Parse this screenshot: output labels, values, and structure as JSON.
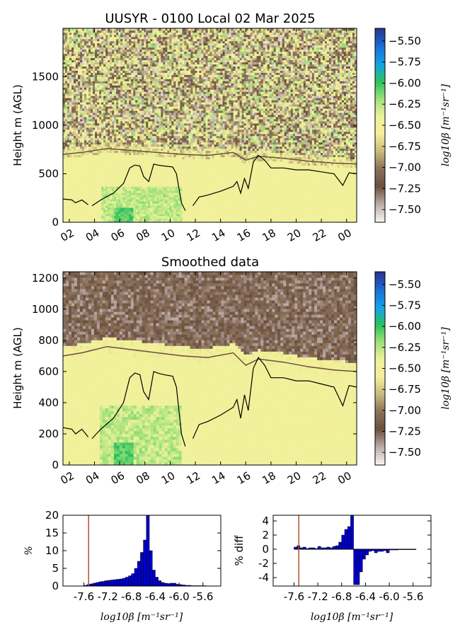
{
  "title": "UUSYR - 0100 Local 02 Mar 2025",
  "chart_data": [
    {
      "type": "heatmap",
      "subtitle": "",
      "ylabel": "Height m (AGL)",
      "xlabel": "",
      "x_tick_labels": [
        "02",
        "04",
        "06",
        "08",
        "10",
        "12",
        "14",
        "16",
        "18",
        "20",
        "22",
        "00"
      ],
      "x_range_hours": [
        1.5,
        24.8
      ],
      "y_ticks": [
        0,
        500,
        1000,
        1500
      ],
      "ylim": [
        0,
        2000
      ],
      "colorbar_label": "log10β [m⁻¹sr⁻¹]",
      "colorbar_ticks": [
        -5.5,
        -5.75,
        -6.0,
        -6.25,
        -6.5,
        -6.75,
        -7.0,
        -7.25,
        -7.5
      ],
      "colorbar_tick_labels": [
        "−5.50",
        "−5.75",
        "−6.00",
        "−6.25",
        "−6.50",
        "−6.75",
        "−7.00",
        "−7.25",
        "−7.50"
      ],
      "clim": [
        -7.65,
        -5.35
      ],
      "colormap": [
        "#2b3590",
        "#1a6fd6",
        "#12a3e8",
        "#2dc25a",
        "#9fe07a",
        "#eef29a",
        "#f6ee9a",
        "#c9b97c",
        "#8c7258",
        "#6b4f3e",
        "#b9a9a3",
        "#f4f0ef"
      ],
      "cloud_layer_line": {
        "color": "#6b4f3e",
        "x": [
          1.5,
          3,
          5,
          7,
          9,
          11,
          13,
          15,
          16,
          17,
          19,
          21,
          23,
          24.8
        ],
        "y": [
          700,
          720,
          760,
          740,
          720,
          700,
          690,
          720,
          640,
          680,
          660,
          630,
          610,
          600
        ]
      },
      "boundary_layer_line": {
        "color": "#000000",
        "segments": [
          {
            "x": [
              1.5,
              2.2,
              2.5,
              3.0,
              3.5
            ],
            "y": [
              240,
              230,
              200,
              230,
              180
            ]
          },
          {
            "x": [
              3.8,
              4.5,
              5.5,
              6.3,
              6.8,
              7.2,
              7.6,
              7.9,
              8.3,
              8.7,
              9.0,
              9.5,
              10.2,
              10.5,
              10.9,
              11.2
            ],
            "y": [
              170,
              230,
              300,
              400,
              560,
              590,
              580,
              470,
              420,
              600,
              590,
              580,
              570,
              500,
              200,
              120
            ]
          },
          {
            "x": [
              11.8,
              12.3,
              13.0,
              14.0,
              15.0,
              15.3,
              15.6,
              15.9,
              16.2,
              16.6,
              17.0,
              17.5,
              18.0,
              19.0,
              20.0,
              21.0,
              22.0,
              23.0,
              23.7,
              24.2,
              24.8
            ],
            "y": [
              170,
              260,
              280,
              320,
              370,
              420,
              300,
              450,
              350,
              620,
              690,
              640,
              560,
              560,
              540,
              540,
              520,
              500,
              380,
              510,
              500
            ]
          }
        ]
      }
    },
    {
      "type": "heatmap",
      "subtitle": "Smoothed data",
      "ylabel": "Height m (AGL)",
      "xlabel": "",
      "x_tick_labels": [
        "02",
        "04",
        "06",
        "08",
        "10",
        "12",
        "14",
        "16",
        "18",
        "20",
        "22",
        "00"
      ],
      "x_range_hours": [
        1.5,
        24.8
      ],
      "y_ticks": [
        0,
        200,
        400,
        600,
        800,
        1000,
        1200
      ],
      "ylim": [
        0,
        1240
      ],
      "colorbar_label": "log10β [m⁻¹sr⁻¹]",
      "colorbar_ticks": [
        -5.5,
        -5.75,
        -6.0,
        -6.25,
        -6.5,
        -6.75,
        -7.0,
        -7.25,
        -7.5
      ],
      "colorbar_tick_labels": [
        "−5.50",
        "−5.75",
        "−6.00",
        "−6.25",
        "−6.50",
        "−6.75",
        "−7.00",
        "−7.25",
        "−7.50"
      ],
      "clim": [
        -7.65,
        -5.35
      ],
      "cloud_layer_line": {
        "color": "#6b4f3e",
        "x": [
          1.5,
          3,
          5,
          7,
          9,
          11,
          13,
          15,
          16,
          17,
          19,
          21,
          23,
          24.8
        ],
        "y": [
          700,
          720,
          760,
          740,
          720,
          700,
          690,
          720,
          640,
          680,
          660,
          630,
          610,
          600
        ]
      },
      "boundary_layer_line": {
        "color": "#000000",
        "segments": [
          {
            "x": [
              1.5,
              2.2,
              2.5,
              3.0,
              3.5
            ],
            "y": [
              240,
              230,
              200,
              230,
              180
            ]
          },
          {
            "x": [
              3.8,
              4.5,
              5.5,
              6.3,
              6.8,
              7.2,
              7.6,
              7.9,
              8.3,
              8.7,
              9.0,
              9.5,
              10.2,
              10.5,
              10.9,
              11.2
            ],
            "y": [
              170,
              230,
              300,
              400,
              560,
              590,
              580,
              470,
              420,
              600,
              590,
              580,
              570,
              500,
              200,
              120
            ]
          },
          {
            "x": [
              11.8,
              12.3,
              13.0,
              14.0,
              15.0,
              15.3,
              15.6,
              15.9,
              16.2,
              16.6,
              17.0,
              17.5,
              18.0,
              19.0,
              20.0,
              21.0,
              22.0,
              23.0,
              23.7,
              24.2,
              24.8
            ],
            "y": [
              170,
              260,
              280,
              320,
              370,
              420,
              300,
              450,
              350,
              620,
              690,
              640,
              560,
              560,
              540,
              540,
              520,
              500,
              380,
              510,
              500
            ]
          }
        ]
      }
    },
    {
      "type": "bar",
      "ylabel": "%",
      "xlabel": "log10β [m⁻¹sr⁻¹]",
      "x_tick_labels": [
        "-7.6",
        "-7.2",
        "-6.8",
        "-6.4",
        "-6.0",
        "-5.6"
      ],
      "x_ticks": [
        -7.6,
        -7.2,
        -6.8,
        -6.4,
        -6.0,
        -5.6
      ],
      "xlim": [
        -7.95,
        -5.3
      ],
      "y_ticks": [
        0,
        5,
        10,
        15,
        20
      ],
      "ylim": [
        0,
        20
      ],
      "bar_color": "#0000cc",
      "vline": {
        "x": -7.52,
        "color": "#b0522c"
      },
      "bin_width": 0.05,
      "x": [
        -7.6,
        -7.55,
        -7.5,
        -7.45,
        -7.4,
        -7.35,
        -7.3,
        -7.25,
        -7.2,
        -7.15,
        -7.1,
        -7.05,
        -7.0,
        -6.95,
        -6.9,
        -6.85,
        -6.8,
        -6.75,
        -6.7,
        -6.65,
        -6.6,
        -6.55,
        -6.5,
        -6.45,
        -6.4,
        -6.35,
        -6.3,
        -6.25,
        -6.2,
        -6.15,
        -6.1,
        -6.05,
        -6.0,
        -5.95,
        -5.9,
        -5.85,
        -5.8,
        -5.75,
        -5.7,
        -5.65,
        -5.6
      ],
      "values": [
        0.2,
        0.4,
        0.6,
        0.8,
        1.0,
        1.2,
        1.3,
        1.5,
        1.6,
        1.7,
        1.8,
        1.9,
        2.0,
        2.2,
        2.5,
        2.9,
        3.5,
        5.0,
        7.0,
        9.5,
        13.0,
        20.0,
        10.0,
        4.5,
        2.5,
        1.5,
        1.0,
        0.8,
        0.7,
        0.8,
        0.8,
        0.5,
        0.4,
        0.3,
        0.2,
        0.2,
        0.1,
        0.1,
        0.1,
        0.1,
        0.1
      ]
    },
    {
      "type": "bar",
      "ylabel": "% diff",
      "xlabel": "log10β [m⁻¹sr⁻¹]",
      "x_tick_labels": [
        "-7.6",
        "-7.2",
        "-6.8",
        "-6.4",
        "-6.0",
        "-5.6"
      ],
      "x_ticks": [
        -7.6,
        -7.2,
        -6.8,
        -6.4,
        -6.0,
        -5.6
      ],
      "xlim": [
        -7.95,
        -5.3
      ],
      "y_ticks": [
        -4,
        -2,
        0,
        2,
        4
      ],
      "ylim": [
        -5.2,
        4.8
      ],
      "bar_color": "#0000cc",
      "vline": {
        "x": -7.52,
        "color": "#b0522c"
      },
      "bin_width": 0.05,
      "x": [
        -7.6,
        -7.55,
        -7.5,
        -7.45,
        -7.4,
        -7.35,
        -7.3,
        -7.25,
        -7.2,
        -7.15,
        -7.1,
        -7.05,
        -7.0,
        -6.95,
        -6.9,
        -6.85,
        -6.8,
        -6.75,
        -6.7,
        -6.65,
        -6.6,
        -6.55,
        -6.5,
        -6.45,
        -6.4,
        -6.35,
        -6.3,
        -6.25,
        -6.2,
        -6.15,
        -6.1,
        -6.05,
        -6.0,
        -5.95,
        -5.9,
        -5.85,
        -5.8,
        -5.75,
        -5.7,
        -5.65,
        -5.6
      ],
      "values": [
        0.3,
        0.5,
        0.2,
        0.3,
        0.1,
        0.2,
        0.2,
        0.1,
        0.4,
        0.2,
        0.2,
        0.3,
        0.2,
        0.4,
        0.5,
        1.0,
        2.0,
        2.8,
        3.2,
        4.8,
        -5.0,
        -5.0,
        -3.2,
        -1.4,
        -0.8,
        -0.3,
        -0.2,
        -0.5,
        -0.3,
        -0.3,
        -0.2,
        -0.5,
        -0.1,
        -0.1,
        -0.1,
        -0.05,
        -0.05,
        0.0,
        0.0,
        0.0,
        0.0
      ]
    }
  ]
}
